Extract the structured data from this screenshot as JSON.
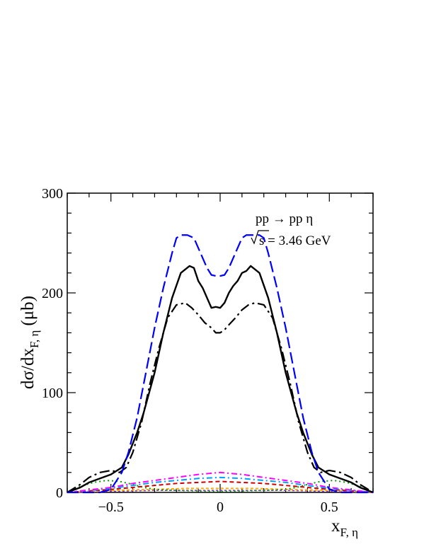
{
  "chart_data": {
    "type": "line",
    "xlabel": "x",
    "xlabel_sub": "F, η",
    "ylabel": "dσ/dx",
    "ylabel_sub": "F, η",
    "ylabel_unit": "(μb)",
    "xlim": [
      -0.7,
      0.7
    ],
    "ylim": [
      0,
      300
    ],
    "x_ticks": [
      -0.5,
      0,
      0.5
    ],
    "x_tick_labels": [
      "−0.5",
      "0",
      "0.5"
    ],
    "y_ticks": [
      0,
      100,
      200,
      300
    ],
    "y_tick_labels": [
      "0",
      "100",
      "200",
      "300"
    ],
    "annotations": {
      "reaction": "pp → pp η",
      "energy_sqrt": "s",
      "energy_value": " = 3.46 GeV"
    },
    "grid": false,
    "legend": "none",
    "series": [
      {
        "color": "#0000ff",
        "dash": "16,6",
        "width": 2.2,
        "x": [
          -0.7,
          -0.62,
          -0.55,
          -0.5,
          -0.45,
          -0.42,
          -0.38,
          -0.34,
          -0.3,
          -0.26,
          -0.22,
          -0.2,
          -0.18,
          -0.15,
          -0.12,
          -0.1,
          -0.08,
          -0.06,
          -0.04,
          -0.02,
          0,
          0.02,
          0.04,
          0.06,
          0.08,
          0.1,
          0.12,
          0.15,
          0.18,
          0.2,
          0.22,
          0.26,
          0.3,
          0.34,
          0.38,
          0.42,
          0.45,
          0.5,
          0.55,
          0.62,
          0.7
        ],
        "y": [
          0,
          0,
          0,
          3,
          20,
          40,
          75,
          120,
          165,
          205,
          240,
          255,
          258,
          258,
          255,
          245,
          235,
          225,
          218,
          217,
          217,
          218,
          225,
          235,
          245,
          255,
          258,
          258,
          258,
          255,
          240,
          205,
          165,
          120,
          75,
          40,
          20,
          3,
          0,
          0,
          0
        ]
      },
      {
        "color": "#000000",
        "dash": "",
        "width": 2.4,
        "x": [
          -0.7,
          -0.64,
          -0.6,
          -0.55,
          -0.5,
          -0.45,
          -0.42,
          -0.38,
          -0.35,
          -0.3,
          -0.26,
          -0.22,
          -0.18,
          -0.14,
          -0.12,
          -0.1,
          -0.08,
          -0.06,
          -0.04,
          -0.02,
          0,
          0.02,
          0.04,
          0.06,
          0.08,
          0.1,
          0.12,
          0.14,
          0.18,
          0.22,
          0.26,
          0.3,
          0.35,
          0.38,
          0.42,
          0.45,
          0.5,
          0.55,
          0.6,
          0.64,
          0.7
        ],
        "y": [
          0,
          5,
          10,
          14,
          18,
          25,
          38,
          60,
          80,
          120,
          160,
          195,
          220,
          227,
          225,
          212,
          205,
          195,
          185,
          186,
          185,
          190,
          200,
          207,
          212,
          220,
          222,
          227,
          220,
          195,
          160,
          120,
          80,
          60,
          38,
          25,
          18,
          14,
          10,
          5,
          0
        ]
      },
      {
        "color": "#000000",
        "dash": "14,5,3,5",
        "width": 2.2,
        "x": [
          -0.7,
          -0.64,
          -0.6,
          -0.55,
          -0.5,
          -0.46,
          -0.43,
          -0.4,
          -0.36,
          -0.32,
          -0.28,
          -0.24,
          -0.2,
          -0.16,
          -0.13,
          -0.1,
          -0.07,
          -0.04,
          -0.02,
          0,
          0.02,
          0.04,
          0.07,
          0.1,
          0.13,
          0.16,
          0.2,
          0.24,
          0.28,
          0.32,
          0.36,
          0.4,
          0.43,
          0.46,
          0.5,
          0.55,
          0.6,
          0.64,
          0.7
        ],
        "y": [
          0,
          8,
          15,
          20,
          22,
          20,
          25,
          40,
          70,
          110,
          145,
          175,
          188,
          190,
          185,
          178,
          170,
          165,
          160,
          160,
          163,
          168,
          175,
          183,
          188,
          190,
          188,
          175,
          145,
          110,
          70,
          40,
          25,
          20,
          22,
          20,
          15,
          8,
          0
        ]
      },
      {
        "color": "#ff00ff",
        "dash": "8,4,2,4",
        "width": 2,
        "x": [
          -0.7,
          -0.5,
          -0.4,
          -0.3,
          -0.2,
          -0.1,
          0,
          0.1,
          0.2,
          0.3,
          0.4,
          0.5,
          0.7
        ],
        "y": [
          0,
          5,
          9,
          12,
          15,
          18,
          20,
          18,
          15,
          12,
          9,
          5,
          0
        ]
      },
      {
        "color": "#00a0ff",
        "dash": "8,4,2,4",
        "width": 2,
        "x": [
          -0.7,
          -0.5,
          -0.4,
          -0.3,
          -0.2,
          -0.1,
          0,
          0.1,
          0.2,
          0.3,
          0.4,
          0.5,
          0.7
        ],
        "y": [
          0,
          4,
          7,
          10,
          12,
          14,
          15,
          14,
          12,
          10,
          7,
          4,
          0
        ]
      },
      {
        "color": "#cc0000",
        "dash": "6,4",
        "width": 2,
        "x": [
          -0.7,
          -0.5,
          -0.4,
          -0.3,
          -0.2,
          -0.1,
          0,
          0.1,
          0.2,
          0.3,
          0.4,
          0.5,
          0.7
        ],
        "y": [
          0,
          3,
          5,
          7,
          9,
          10,
          11,
          10,
          9,
          7,
          5,
          3,
          0
        ]
      },
      {
        "color": "#009900",
        "dash": "2,4",
        "width": 2,
        "x": [
          -0.7,
          -0.64,
          -0.58,
          -0.52,
          -0.46,
          -0.4,
          -0.35,
          -0.3,
          -0.2,
          0,
          0.2,
          0.3,
          0.35,
          0.4,
          0.46,
          0.52,
          0.58,
          0.64,
          0.7
        ],
        "y": [
          0,
          6,
          10,
          12,
          11,
          8,
          5,
          3,
          2,
          1,
          2,
          3,
          5,
          8,
          11,
          12,
          10,
          6,
          0
        ]
      },
      {
        "color": "#ffaa00",
        "dash": "4,3",
        "width": 2,
        "x": [
          -0.7,
          -0.5,
          -0.3,
          -0.15,
          0,
          0.15,
          0.3,
          0.5,
          0.7
        ],
        "y": [
          0,
          2,
          3,
          4,
          4,
          4,
          3,
          2,
          0
        ]
      },
      {
        "color": "#8a2be2",
        "dash": "3,3",
        "width": 1.6,
        "x": [
          -0.7,
          -0.5,
          -0.3,
          0,
          0.3,
          0.5,
          0.7
        ],
        "y": [
          0,
          1,
          2,
          2,
          2,
          1,
          0
        ]
      }
    ]
  }
}
